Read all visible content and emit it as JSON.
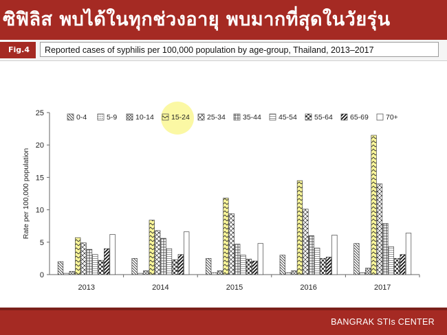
{
  "header": {
    "title": "ซิฟิลิส พบได้ในทุกช่วงอายุ พบมากที่สุดในวัยรุ่น"
  },
  "figure": {
    "tag": "Fig.4",
    "caption": "Reported cases of syphilis per 100,000 population by age-group, Thailand, 2013–2017"
  },
  "footer": {
    "text": "BANGRAK STIs CENTER"
  },
  "highlight_color": "#fbf79a",
  "chart_data": {
    "type": "bar",
    "title": "",
    "xlabel": "",
    "ylabel": "Rate per 100,000 population",
    "ylim": [
      0,
      25
    ],
    "yticks": [
      0,
      5,
      10,
      15,
      20,
      25
    ],
    "categories": [
      "2013",
      "2014",
      "2015",
      "2016",
      "2017"
    ],
    "legend_position": "top",
    "highlighted_series": "15-24",
    "series": [
      {
        "name": "0-4",
        "pattern": "diag-down",
        "values": [
          2.0,
          2.5,
          2.5,
          3.0,
          4.8
        ]
      },
      {
        "name": "5-9",
        "pattern": "dots",
        "values": [
          0.2,
          0.2,
          0.3,
          0.3,
          0.3
        ]
      },
      {
        "name": "10-14",
        "pattern": "crosshatch",
        "values": [
          0.5,
          0.6,
          0.6,
          0.6,
          1.0
        ]
      },
      {
        "name": "15-24",
        "pattern": "zigzag",
        "values": [
          5.7,
          8.4,
          11.8,
          14.5,
          21.5
        ]
      },
      {
        "name": "25-34",
        "pattern": "diag-cross",
        "values": [
          4.9,
          6.8,
          9.4,
          10.1,
          14.0
        ]
      },
      {
        "name": "35-44",
        "pattern": "grid",
        "values": [
          3.9,
          5.6,
          4.7,
          6.0,
          7.9
        ]
      },
      {
        "name": "45-54",
        "pattern": "hlines",
        "values": [
          3.1,
          4.0,
          3.0,
          4.1,
          4.3
        ]
      },
      {
        "name": "55-64",
        "pattern": "checker",
        "values": [
          2.2,
          2.3,
          2.4,
          2.5,
          2.5
        ]
      },
      {
        "name": "65-69",
        "pattern": "thick-diag",
        "values": [
          4.0,
          3.1,
          2.1,
          2.7,
          3.1
        ]
      },
      {
        "name": "70+",
        "pattern": "none",
        "values": [
          6.2,
          6.6,
          4.8,
          6.1,
          6.4
        ]
      }
    ]
  }
}
